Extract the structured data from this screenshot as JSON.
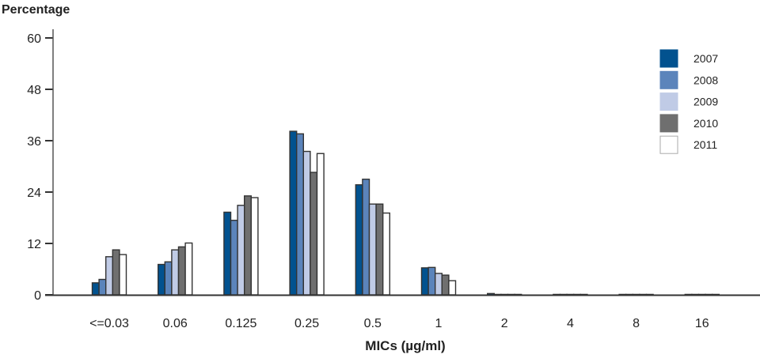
{
  "chart_data": {
    "type": "bar",
    "ylabel": "Percentage",
    "xlabel": "MICs (µg/ml)",
    "ylim": [
      0,
      60
    ],
    "yticks": [
      0,
      12,
      24,
      36,
      48,
      60
    ],
    "categories": [
      "<=0.03",
      "0.06",
      "0.125",
      "0.25",
      "0.5",
      "1",
      "2",
      "4",
      "8",
      "16"
    ],
    "legend_position": "top-right",
    "grid": false,
    "series": [
      {
        "name": "2007",
        "color": "#02528f",
        "values": [
          2.8,
          7.1,
          19.3,
          38.2,
          25.7,
          6.3,
          0.3,
          0.1,
          0.1,
          0.1
        ]
      },
      {
        "name": "2008",
        "color": "#5b84bb",
        "values": [
          3.6,
          7.7,
          17.4,
          37.6,
          27.0,
          6.4,
          0.1,
          0.1,
          0.1,
          0.1
        ]
      },
      {
        "name": "2009",
        "color": "#c0cbe6",
        "values": [
          8.9,
          10.5,
          20.9,
          33.5,
          21.2,
          5.0,
          0.1,
          0.1,
          0.1,
          0.1
        ]
      },
      {
        "name": "2010",
        "color": "#6f6f6f",
        "values": [
          10.5,
          11.2,
          23.1,
          28.6,
          21.2,
          4.6,
          0.1,
          0.1,
          0.1,
          0.1
        ]
      },
      {
        "name": "2011",
        "color": "#ffffff",
        "values": [
          9.4,
          12.1,
          22.7,
          33.0,
          19.1,
          3.3,
          0.1,
          0.1,
          0.1,
          0.1
        ]
      }
    ]
  }
}
